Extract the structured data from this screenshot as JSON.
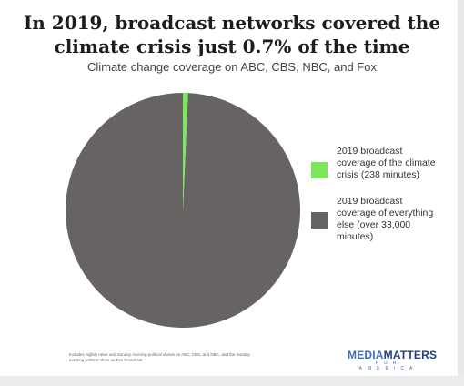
{
  "title": "In 2019, broadcast networks covered the climate crisis just 0.7% of the time",
  "subtitle": "Climate change coverage on ABC, CBS, NBC, and Fox",
  "footnote": "Includes nightly news and Sunday morning political shows on ABC, CBS, and NBC, and the Sunday morning political show on Fox broadcast.",
  "logo": {
    "main_a": "MEDIA",
    "main_b": "MATTERS",
    "sub": "FOR AMERICA"
  },
  "chart_data": {
    "type": "pie",
    "title": "In 2019, broadcast networks covered the climate crisis just 0.7% of the time",
    "subtitle": "Climate change coverage on ABC, CBS, NBC, and Fox",
    "slices": [
      {
        "label": "2019 broadcast coverage of the climate crisis (238 minutes)",
        "value": 0.7,
        "color": "#7be85a"
      },
      {
        "label": "2019 broadcast coverage of everything else (over 33,000 minutes)",
        "value": 99.3,
        "color": "#676363"
      }
    ],
    "legend_position": "right"
  }
}
